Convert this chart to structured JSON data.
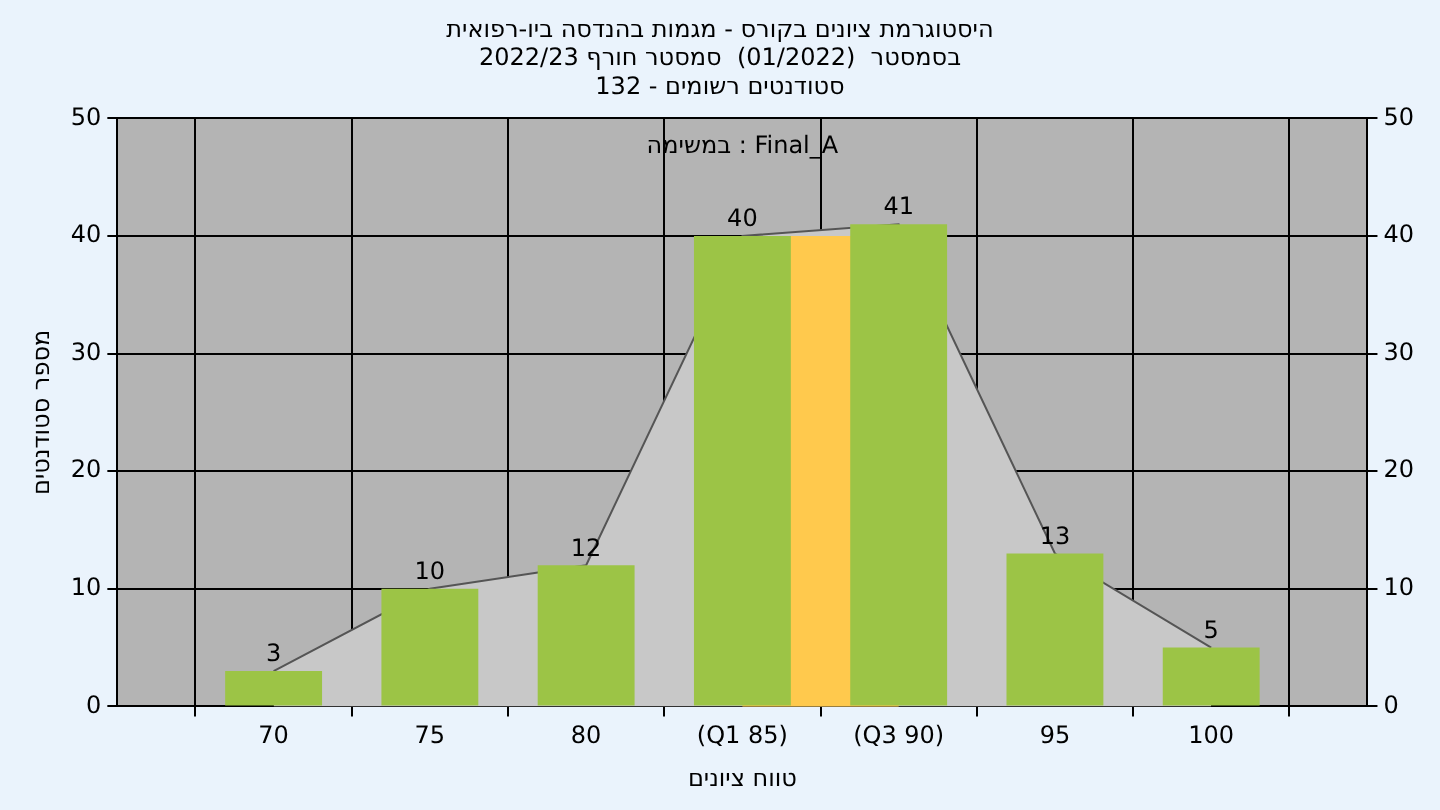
{
  "chart_data": {
    "type": "bar",
    "title": [
      "היסטוגרמת ציונים בקורס - מגמות בהנדסה ביו-רפואית",
      "בסמסטר  (01/2022)  סמסטר חורף 2022/23",
      "סטודנטים רשומים - 132"
    ],
    "xlabel": "טווח ציונים",
    "ylabel": "מספר סטודנטים",
    "annotations": [
      "במשימה : Final_A"
    ],
    "categories": [
      null,
      "70",
      "75",
      "80",
      "(Q1 85)",
      "(Q3 90)",
      "95",
      "100",
      null
    ],
    "series": [
      {
        "type": "area",
        "color": "#c8c8c8",
        "values": [
          null,
          3,
          10,
          12,
          40,
          41,
          13,
          5,
          null
        ]
      },
      {
        "color": "#9cc446",
        "values": [
          null,
          3,
          10,
          12,
          40,
          41,
          13,
          5,
          null
        ],
        "value_labels": [
          null,
          "3",
          "10",
          "12",
          "40",
          "41",
          "13",
          "5",
          null
        ]
      }
    ],
    "bands": [
      {
        "axis": "x",
        "from": "(Q1 85)",
        "to": "(Q3 90)",
        "color": "#ffc94d"
      }
    ],
    "ylim": [
      0,
      50
    ],
    "yticks": [
      0,
      10,
      20,
      30,
      40,
      50
    ],
    "y2lim": [
      0,
      50
    ],
    "y2ticks": [
      0,
      10,
      20,
      30,
      40,
      50
    ],
    "grid": true,
    "legend": false
  }
}
